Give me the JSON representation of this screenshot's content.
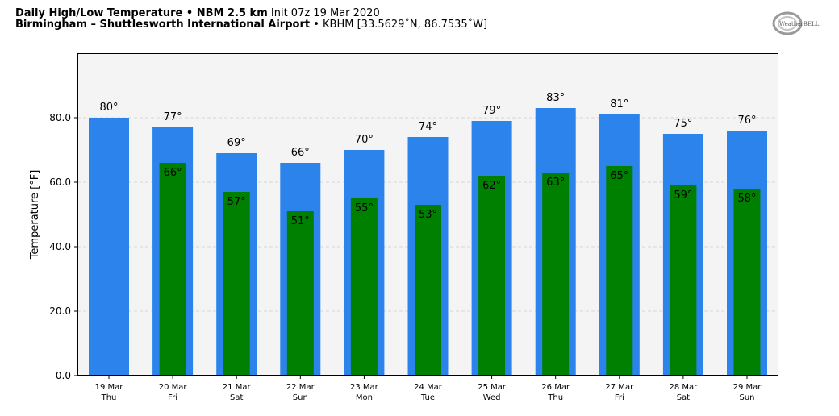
{
  "header": {
    "title_bold": "Daily High/Low Temperature • NBM 2.5 km",
    "init": "Init 07z 19 Mar 2020",
    "location_bold": "Birmingham – Shuttlesworth International Airport",
    "station": "• KBHM [33.5629˚N, 86.7535˚W]"
  },
  "logo": {
    "text": "WeatherBELL",
    "icon": "weatherbell-logo"
  },
  "colors": {
    "high": "#2b83eb",
    "low": "#008000",
    "plot_bg": "#f4f4f4",
    "grid": "#cccccc"
  },
  "chart_data": {
    "type": "bar",
    "title": "Daily High/Low Temperature",
    "ylabel": "Temperature [°F]",
    "ylim": [
      0,
      100
    ],
    "yticks": [
      "0.0",
      "20.0",
      "40.0",
      "60.0",
      "80.0"
    ],
    "grid": true,
    "categories": [
      [
        "19 Mar",
        "Thu"
      ],
      [
        "20 Mar",
        "Fri"
      ],
      [
        "21 Mar",
        "Sat"
      ],
      [
        "22 Mar",
        "Sun"
      ],
      [
        "23 Mar",
        "Mon"
      ],
      [
        "24 Mar",
        "Tue"
      ],
      [
        "25 Mar",
        "Wed"
      ],
      [
        "26 Mar",
        "Thu"
      ],
      [
        "27 Mar",
        "Fri"
      ],
      [
        "28 Mar",
        "Sat"
      ],
      [
        "29 Mar",
        "Sun"
      ]
    ],
    "series": [
      {
        "values": [
          80,
          77,
          69,
          66,
          70,
          74,
          79,
          83,
          81,
          75,
          76
        ],
        "labels": [
          "80°",
          "77°",
          "69°",
          "66°",
          "70°",
          "74°",
          "79°",
          "83°",
          "81°",
          "75°",
          "76°"
        ]
      },
      {
        "values": [
          null,
          66,
          57,
          51,
          55,
          53,
          62,
          63,
          65,
          59,
          58
        ],
        "labels": [
          null,
          "66°",
          "57°",
          "51°",
          "55°",
          "53°",
          "62°",
          "63°",
          "65°",
          "59°",
          "58°"
        ]
      }
    ]
  }
}
